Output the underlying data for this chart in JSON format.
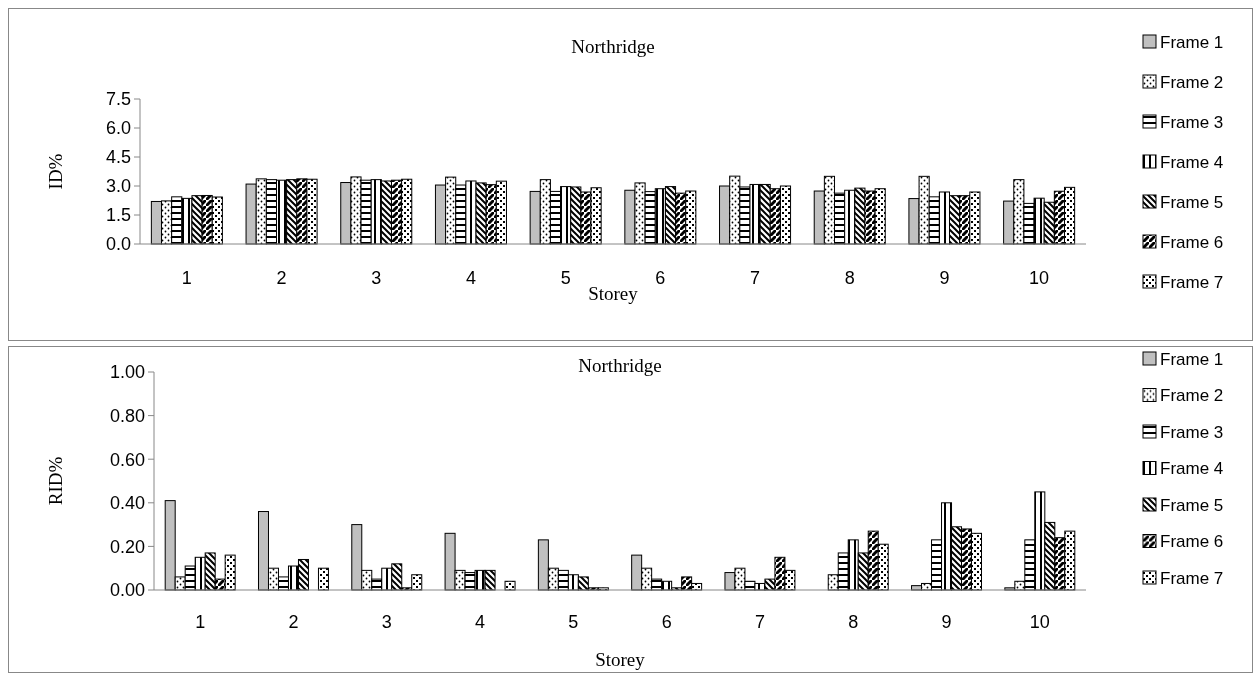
{
  "chart_data": [
    {
      "type": "bar",
      "title": "Northridge",
      "xlabel": "Storey",
      "ylabel": "ID%",
      "categories": [
        "1",
        "2",
        "3",
        "4",
        "5",
        "6",
        "7",
        "8",
        "9",
        "10"
      ],
      "ylim": [
        0,
        7.5
      ],
      "yticks": [
        {
          "value": 0,
          "label": "0.0"
        },
        {
          "value": 1.5,
          "label": "1.5"
        },
        {
          "value": 3,
          "label": "3.0"
        },
        {
          "value": 4.5,
          "label": "4.5"
        },
        {
          "value": 6,
          "label": "6.0"
        },
        {
          "value": 7.5,
          "label": "7.5"
        }
      ],
      "legend": "right",
      "series": [
        {
          "name": "Frame 1",
          "color": "#c0c0c0",
          "values": [
            2.2,
            3.1,
            3.18,
            3.05,
            2.72,
            2.78,
            3.0,
            2.74,
            2.35,
            2.22
          ]
        },
        {
          "name": "Frame 2",
          "color": "#000000",
          "values": [
            2.23,
            3.37,
            3.47,
            3.46,
            3.33,
            3.16,
            3.51,
            3.5,
            3.5,
            3.33
          ]
        },
        {
          "name": "Frame 3",
          "color": "#000000",
          "values": [
            2.44,
            3.33,
            3.3,
            3.05,
            2.72,
            2.71,
            2.95,
            2.63,
            2.44,
            2.1
          ]
        },
        {
          "name": "Frame 4",
          "color": "#000000",
          "values": [
            2.36,
            3.3,
            3.33,
            3.26,
            2.97,
            2.86,
            3.08,
            2.78,
            2.69,
            2.37
          ]
        },
        {
          "name": "Frame 5",
          "color": "#000000",
          "values": [
            2.5,
            3.33,
            3.26,
            3.16,
            2.95,
            2.97,
            3.08,
            2.89,
            2.5,
            2.16
          ]
        },
        {
          "name": "Frame 6",
          "color": "#000000",
          "values": [
            2.51,
            3.37,
            3.3,
            3.07,
            2.69,
            2.63,
            2.86,
            2.74,
            2.5,
            2.73
          ]
        },
        {
          "name": "Frame 7",
          "color": "#000000",
          "values": [
            2.43,
            3.35,
            3.35,
            3.25,
            2.91,
            2.74,
            3.0,
            2.86,
            2.69,
            2.93
          ]
        }
      ]
    },
    {
      "type": "bar",
      "title": "Northridge",
      "xlabel": "Storey",
      "ylabel": "RID%",
      "categories": [
        "1",
        "2",
        "3",
        "4",
        "5",
        "6",
        "7",
        "8",
        "9",
        "10"
      ],
      "ylim": [
        0,
        1
      ],
      "yticks": [
        {
          "value": 0,
          "label": "0.00"
        },
        {
          "value": 0.2,
          "label": "0.20"
        },
        {
          "value": 0.4,
          "label": "0.40"
        },
        {
          "value": 0.6,
          "label": "0.60"
        },
        {
          "value": 0.8,
          "label": "0.80"
        },
        {
          "value": 1,
          "label": "1.00"
        }
      ],
      "legend": "right",
      "series": [
        {
          "name": "Frame 1",
          "color": "#c0c0c0",
          "values": [
            0.41,
            0.36,
            0.3,
            0.26,
            0.23,
            0.16,
            0.08,
            0.0,
            0.02,
            0.01
          ]
        },
        {
          "name": "Frame 2",
          "color": "#000000",
          "values": [
            0.06,
            0.1,
            0.09,
            0.09,
            0.1,
            0.1,
            0.1,
            0.07,
            0.03,
            0.04
          ]
        },
        {
          "name": "Frame 3",
          "color": "#000000",
          "values": [
            0.11,
            0.06,
            0.05,
            0.08,
            0.09,
            0.05,
            0.04,
            0.17,
            0.23,
            0.23
          ]
        },
        {
          "name": "Frame 4",
          "color": "#000000",
          "values": [
            0.15,
            0.11,
            0.1,
            0.09,
            0.07,
            0.04,
            0.03,
            0.23,
            0.4,
            0.45
          ]
        },
        {
          "name": "Frame 5",
          "color": "#000000",
          "values": [
            0.17,
            0.14,
            0.12,
            0.09,
            0.06,
            0.01,
            0.05,
            0.17,
            0.29,
            0.31
          ]
        },
        {
          "name": "Frame 6",
          "color": "#000000",
          "values": [
            0.05,
            0.0,
            0.01,
            0.0,
            0.01,
            0.06,
            0.15,
            0.27,
            0.28,
            0.24
          ]
        },
        {
          "name": "Frame 7",
          "color": "#000000",
          "values": [
            0.16,
            0.1,
            0.07,
            0.04,
            0.01,
            0.03,
            0.09,
            0.21,
            0.26,
            0.27
          ]
        }
      ]
    }
  ]
}
